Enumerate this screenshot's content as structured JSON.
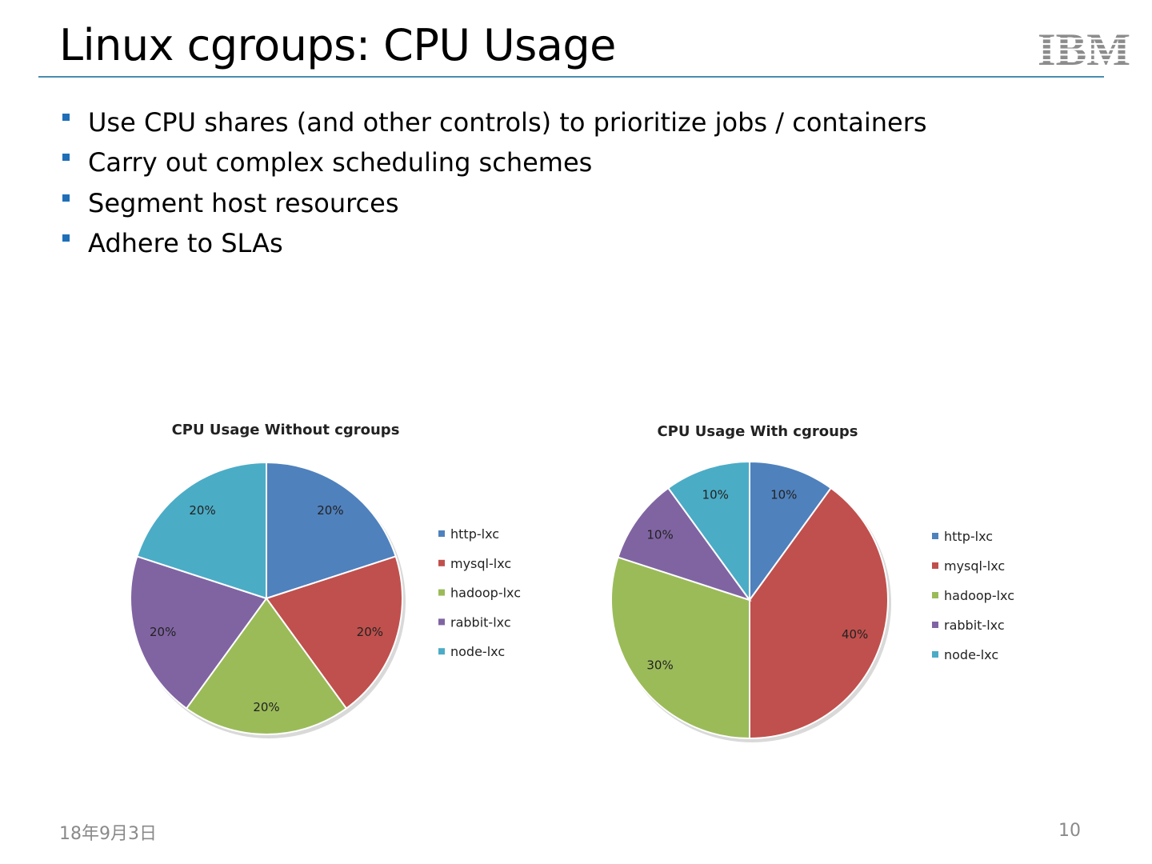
{
  "slide": {
    "title": "Linux cgroups: CPU Usage",
    "bullets": [
      "Use CPU shares (and other controls) to prioritize jobs / containers",
      "Carry out complex scheduling schemes",
      "Segment host resources",
      "Adhere to SLAs"
    ],
    "footer_date": "18年9月3日",
    "page_number": "10"
  },
  "logo": {
    "text": "IBM",
    "icon": "ibm-striped-logo"
  },
  "colors": {
    "accent_rule": "#4a8bb0",
    "bullet_marker": "#1f6fb8",
    "footer_text": "#8a8a8a"
  },
  "chart_data": [
    {
      "type": "pie",
      "title": "CPU Usage Without cgroups",
      "categories": [
        "http-lxc",
        "mysql-lxc",
        "hadoop-lxc",
        "rabbit-lxc",
        "node-lxc"
      ],
      "values": [
        20,
        20,
        20,
        20,
        20
      ],
      "labels": [
        "20%",
        "20%",
        "20%",
        "20%",
        "20%"
      ],
      "colors": [
        "#4f81bd",
        "#c0504d",
        "#9bbb59",
        "#8064a2",
        "#4bacc6"
      ],
      "legend": "right"
    },
    {
      "type": "pie",
      "title": "CPU Usage With cgroups",
      "categories": [
        "http-lxc",
        "mysql-lxc",
        "hadoop-lxc",
        "rabbit-lxc",
        "node-lxc"
      ],
      "values": [
        10,
        40,
        30,
        10,
        10
      ],
      "labels": [
        "10%",
        "40%",
        "30%",
        "10%",
        "10%"
      ],
      "colors": [
        "#4f81bd",
        "#c0504d",
        "#9bbb59",
        "#8064a2",
        "#4bacc6"
      ],
      "legend": "right"
    }
  ]
}
